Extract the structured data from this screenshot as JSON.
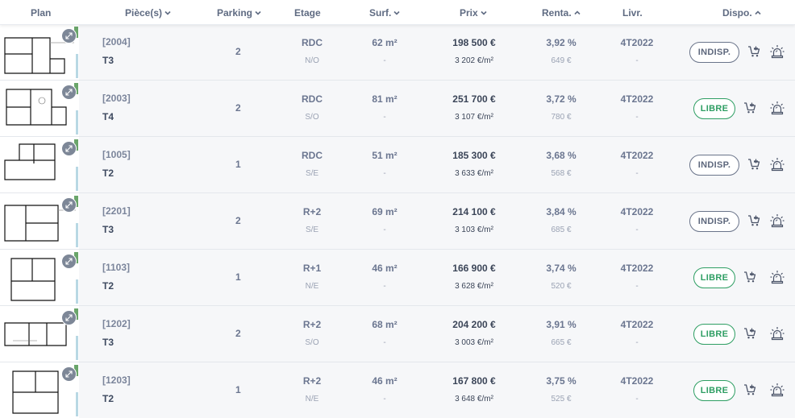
{
  "headers": {
    "plan": "Plan",
    "pieces": "Pièce(s)",
    "parking": "Parking",
    "etage": "Etage",
    "surf": "Surf.",
    "prix": "Prix",
    "renta": "Renta.",
    "livr": "Livr.",
    "dispo": "Dispo."
  },
  "icons": {
    "zoom": "expand-icon",
    "cart": "cart-add-icon",
    "alert": "alarm-icon",
    "sort_down": "chevron-down-icon",
    "sort_up": "chevron-up-icon"
  },
  "colors": {
    "libre": "#2e9e63",
    "indisp": "#6a748a",
    "row_band": "#f6f7f9"
  },
  "lots": [
    {
      "id": "[2004]",
      "type": "T3",
      "parking": "2",
      "etage": "RDC",
      "orientation": "N/O",
      "surface": "62 m²",
      "surface_sub": "-",
      "prix": "198 500 €",
      "prix_m2": "3 202 €/m²",
      "renta": "3,92 %",
      "loyer": "649 €",
      "livraison": "4T2022",
      "livraison_sub": "-",
      "dispo": "INDISP.",
      "status": "indisp"
    },
    {
      "id": "[2003]",
      "type": "T4",
      "parking": "2",
      "etage": "RDC",
      "orientation": "S/O",
      "surface": "81 m²",
      "surface_sub": "-",
      "prix": "251 700 €",
      "prix_m2": "3 107 €/m²",
      "renta": "3,72 %",
      "loyer": "780 €",
      "livraison": "4T2022",
      "livraison_sub": "-",
      "dispo": "LIBRE",
      "status": "libre"
    },
    {
      "id": "[1005]",
      "type": "T2",
      "parking": "1",
      "etage": "RDC",
      "orientation": "S/E",
      "surface": "51 m²",
      "surface_sub": "-",
      "prix": "185 300 €",
      "prix_m2": "3 633 €/m²",
      "renta": "3,68 %",
      "loyer": "568 €",
      "livraison": "4T2022",
      "livraison_sub": "-",
      "dispo": "INDISP.",
      "status": "indisp"
    },
    {
      "id": "[2201]",
      "type": "T3",
      "parking": "2",
      "etage": "R+2",
      "orientation": "S/E",
      "surface": "69 m²",
      "surface_sub": "-",
      "prix": "214 100 €",
      "prix_m2": "3 103 €/m²",
      "renta": "3,84 %",
      "loyer": "685 €",
      "livraison": "4T2022",
      "livraison_sub": "-",
      "dispo": "INDISP.",
      "status": "indisp"
    },
    {
      "id": "[1103]",
      "type": "T2",
      "parking": "1",
      "etage": "R+1",
      "orientation": "N/E",
      "surface": "46 m²",
      "surface_sub": "-",
      "prix": "166 900 €",
      "prix_m2": "3 628 €/m²",
      "renta": "3,74 %",
      "loyer": "520 €",
      "livraison": "4T2022",
      "livraison_sub": "-",
      "dispo": "LIBRE",
      "status": "libre"
    },
    {
      "id": "[1202]",
      "type": "T3",
      "parking": "2",
      "etage": "R+2",
      "orientation": "S/O",
      "surface": "68 m²",
      "surface_sub": "-",
      "prix": "204 200 €",
      "prix_m2": "3 003 €/m²",
      "renta": "3,91 %",
      "loyer": "665 €",
      "livraison": "4T2022",
      "livraison_sub": "-",
      "dispo": "LIBRE",
      "status": "libre"
    },
    {
      "id": "[1203]",
      "type": "T2",
      "parking": "1",
      "etage": "R+2",
      "orientation": "N/E",
      "surface": "46 m²",
      "surface_sub": "-",
      "prix": "167 800 €",
      "prix_m2": "3 648 €/m²",
      "renta": "3,75 %",
      "loyer": "525 €",
      "livraison": "4T2022",
      "livraison_sub": "-",
      "dispo": "LIBRE",
      "status": "libre"
    }
  ]
}
